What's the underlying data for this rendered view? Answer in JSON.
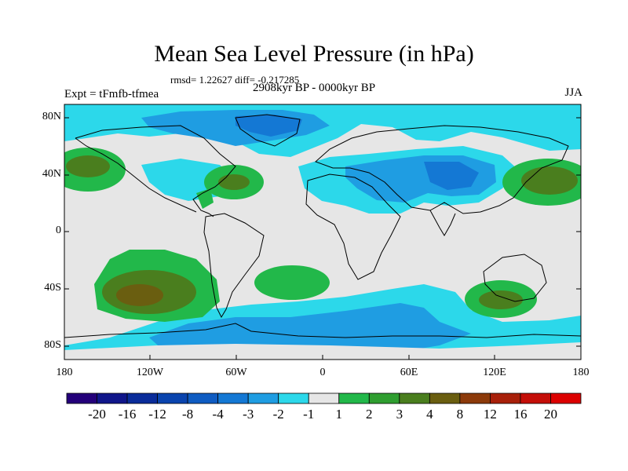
{
  "title": "Mean Sea Level Pressure (in hPa)",
  "stats": "rmsd= 1.22627  diff= -0.217285",
  "period": "2908kyr BP - 0000kyr BP",
  "experiment": "Expt = tFmfb-tfmea",
  "season": "JJA",
  "y_axis_labels": [
    "80N",
    "40N",
    "0",
    "40S",
    "80S"
  ],
  "x_axis_labels": [
    "180",
    "120W",
    "60W",
    "0",
    "60E",
    "120E",
    "180"
  ],
  "colorbar": {
    "labels": [
      "-20",
      "-16",
      "-12",
      "-8",
      "-4",
      "-3",
      "-2",
      "-1",
      "1",
      "2",
      "3",
      "4",
      "8",
      "12",
      "16",
      "20"
    ],
    "colors": [
      "#24007a",
      "#10168a",
      "#0a2c9a",
      "#0a44ae",
      "#0f5cc2",
      "#1478d4",
      "#1f9de2",
      "#2cd8ea",
      "#e6e6e6",
      "#22b84a",
      "#2f9e30",
      "#4a7e1e",
      "#6a5e10",
      "#8c3a0a",
      "#a8200a",
      "#c40e08",
      "#dc0000"
    ]
  },
  "colors": {
    "neutral": "#e6e6e6",
    "light_blue": "#2cd8ea",
    "mid_blue": "#1f9de2",
    "blue": "#1478d4",
    "dark_blue": "#0f5cc2",
    "green": "#22b84a",
    "olive": "#4a7e1e",
    "brown": "#6a5e10"
  }
}
